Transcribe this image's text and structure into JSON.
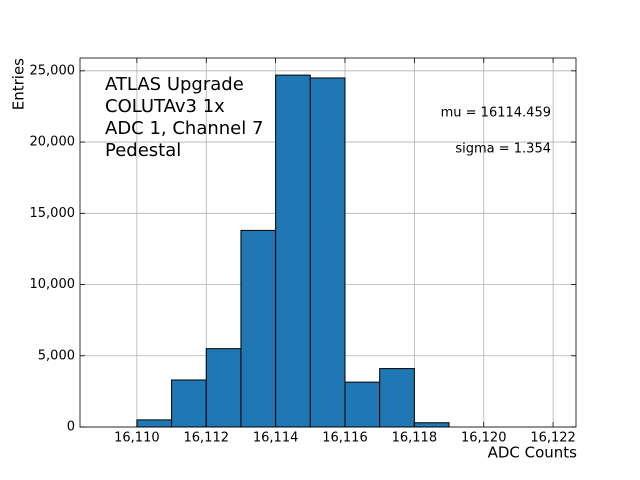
{
  "chart_data": {
    "type": "histogram",
    "annotation": [
      "ATLAS Upgrade",
      "COLUTAv3 1x",
      "ADC 1, Channel 7",
      "Pedestal"
    ],
    "stats": [
      "mu = 16114.459",
      "sigma = 1.354"
    ],
    "x_label": "ADC Counts",
    "y_label": "Entries",
    "bins": [
      16110,
      16111,
      16112,
      16113,
      16114,
      16115,
      16116,
      16117,
      16118,
      16119
    ],
    "values": [
      500,
      3300,
      5500,
      13800,
      24700,
      24500,
      3150,
      4100,
      300
    ],
    "color": "#1f77b4",
    "edgecolor": "#000000",
    "xlim": [
      16108.36,
      16122.66
    ],
    "ylim": [
      0,
      25900
    ],
    "xticks": [
      {
        "value": 16110,
        "label": "16,110"
      },
      {
        "value": 16112,
        "label": "16,112"
      },
      {
        "value": 16114,
        "label": "16,114"
      },
      {
        "value": 16116,
        "label": "16,116"
      },
      {
        "value": 16118,
        "label": "16,118"
      },
      {
        "value": 16120,
        "label": "16,120"
      },
      {
        "value": 16122,
        "label": "16,122"
      }
    ],
    "yticks": [
      0,
      {
        "value": 5000,
        "label": "5,000"
      },
      {
        "value": 10000,
        "label": "10,000"
      },
      {
        "value": 15000,
        "label": "15,000"
      },
      {
        "value": 20000,
        "label": "20,000"
      },
      {
        "value": 25000,
        "label": "25,000"
      }
    ],
    "grid": true
  }
}
